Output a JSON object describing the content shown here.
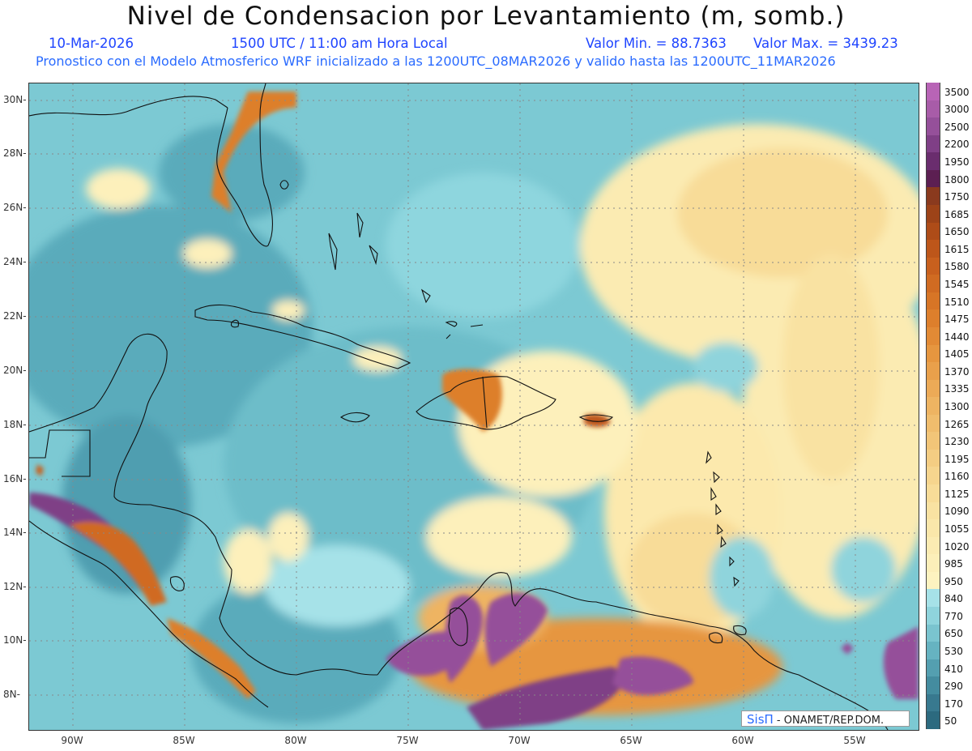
{
  "header": {
    "title": "Nivel de Condensacion por Levantamiento (m, somb.)",
    "date": "10-Mar-2026",
    "time": "1500 UTC / 11:00 am Hora Local",
    "value_min": "Valor Min. = 88.7363",
    "value_max": "Valor Max. = 3439.23",
    "info": "Pronostico con el Modelo Atmosferico WRF inicializado a las 1200UTC_08MAR2026 y valido hasta las  1200UTC_11MAR2026"
  },
  "credit": {
    "logo": "SisΠ",
    "text": " - ONAMET/REP.DOM."
  },
  "axes": {
    "lat_labels": [
      "30N",
      "28N",
      "26N",
      "24N",
      "22N",
      "20N",
      "18N",
      "16N",
      "14N",
      "12N",
      "10N",
      "8N"
    ],
    "lon_labels": [
      "90W",
      "85W",
      "80W",
      "75W",
      "70W",
      "65W",
      "60W",
      "55W"
    ]
  },
  "colorbar": {
    "labels": [
      "3500",
      "3000",
      "2500",
      "2200",
      "1950",
      "1800",
      "1750",
      "1685",
      "1650",
      "1615",
      "1580",
      "1545",
      "1510",
      "1475",
      "1440",
      "1405",
      "1370",
      "1335",
      "1300",
      "1265",
      "1230",
      "1195",
      "1160",
      "1125",
      "1090",
      "1055",
      "1020",
      "985",
      "950",
      "840",
      "770",
      "650",
      "530",
      "410",
      "290",
      "170",
      "50"
    ],
    "colors": [
      "#b864b6",
      "#a85ca8",
      "#95509a",
      "#7f3f86",
      "#6a2d6e",
      "#5c1f52",
      "#8a3a1e",
      "#9d4318",
      "#ae4c18",
      "#bd561a",
      "#c8601e",
      "#d06b22",
      "#d77526",
      "#dd7f2c",
      "#e28a35",
      "#e6963f",
      "#e9a04b",
      "#ecaa57",
      "#eeb462",
      "#f0bd6d",
      "#f2c578",
      "#f4cd83",
      "#f6d58e",
      "#f8dc98",
      "#f9e2a2",
      "#fae7aa",
      "#fbebb2",
      "#fcefb9",
      "#fdf3c0",
      "#a6e2e8",
      "#8fd4dc",
      "#7ac4cf",
      "#66b3c1",
      "#549fb0",
      "#448c9f",
      "#38798f",
      "#2c6a7f"
    ]
  }
}
